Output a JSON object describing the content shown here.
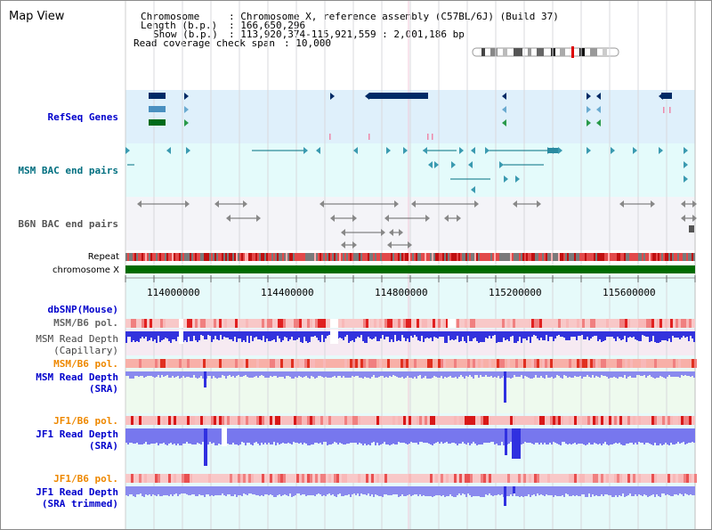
{
  "view_title": "Map View",
  "info": {
    "chromosome_key": "Chromosome",
    "chromosome_val": ": Chromosome X, reference assembly (C57BL/6J) (Build 37)",
    "length_key": "Length (b.p.)",
    "length_val": ": 166,650,296",
    "show_key": "Show (b.p.)",
    "show_val": ": 113,920,374-115,921,559 : 2,001,186 bp",
    "coverage_key": "Read coverage check span",
    "coverage_val": ": 10,000"
  },
  "tracks": {
    "refseq": "RefSeq Genes",
    "msm_bac": "MSM BAC end pairs",
    "b6n_bac": "B6N BAC end pairs",
    "repeat": "Repeat",
    "chromosome": "chromosome X",
    "dbsnp": "dbSNP(Mouse)",
    "msm_b6_pol_1": "MSM/B6 pol.",
    "msm_read_depth_cap_1": "MSM Read Depth",
    "msm_read_depth_cap_2": "(Capillary)",
    "msm_b6_pol_2": "MSM/B6 pol.",
    "msm_read_depth_sra_1": "MSM Read Depth",
    "msm_read_depth_sra_2": "(SRA)",
    "jf1_b6_pol_1": "JF1/B6 pol.",
    "jf1_read_depth_sra_1": "JF1 Read Depth",
    "jf1_read_depth_sra_2": "(SRA)",
    "jf1_b6_pol_2": "JF1/B6 pol.",
    "jf1_read_depth_trim_1": "JF1 Read Depth",
    "jf1_read_depth_trim_2": "(SRA trimmed)"
  },
  "axis_ticks": [
    "114000000",
    "114400000",
    "114800000",
    "115200000",
    "115600000"
  ],
  "colors": {
    "refseq_bg": "#dff0fb",
    "msm_bg": "#e4fbfb",
    "b6n_bg": "#f4f4f8",
    "lower_bg": "#e6fafa",
    "msm_cap_bg": "#f6eaf2",
    "msm_sra_bg": "#eefaee",
    "link_blue": "#0000cc",
    "teal": "#006f80",
    "orange": "#ee8800",
    "gene_navy": "#002b66",
    "gene_lightblue": "#4a90c0",
    "gene_green": "#006b1a",
    "chrom_green": "#006b00",
    "depth_blue": "#3030e0",
    "depth_lightblue": "#8a8aee"
  }
}
